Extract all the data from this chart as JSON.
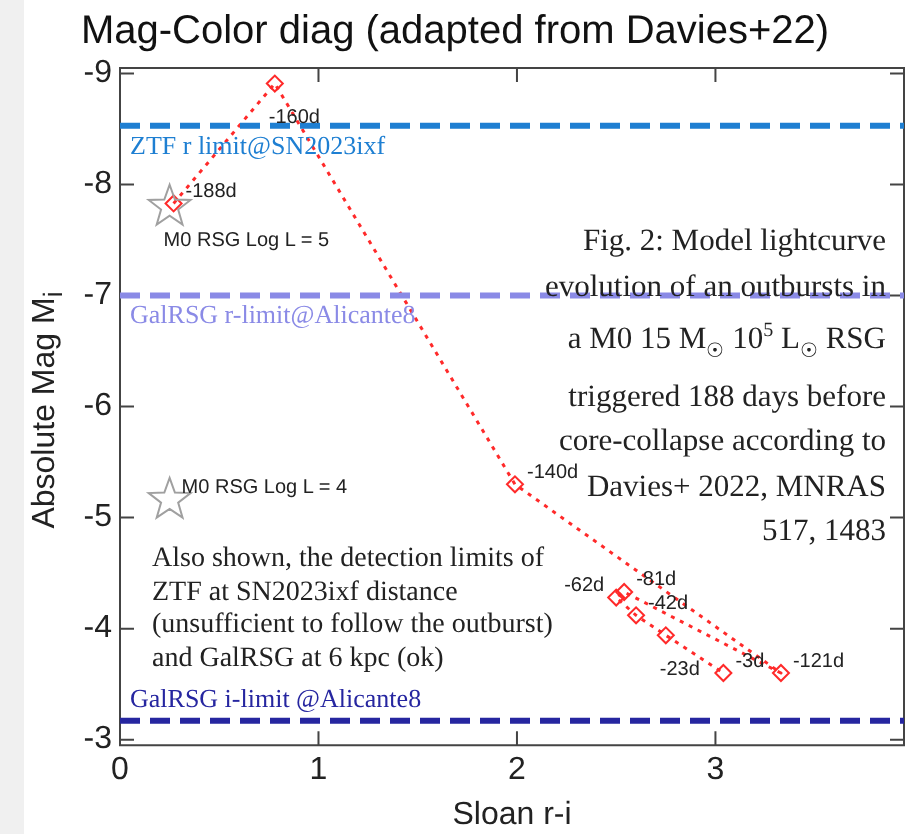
{
  "chart_data": {
    "type": "line",
    "title": "Mag-Color diag (adapted from Davies+22)",
    "xlabel": "Sloan r-i",
    "ylabel": "Absolute Mag M$_{i}$",
    "xlim": [
      0,
      3.95
    ],
    "xticks": [
      0,
      1,
      2,
      3
    ],
    "ylim": [
      -2.95,
      -9.05
    ],
    "yticks": [
      -9,
      -8,
      -7,
      -6,
      -5,
      -4,
      -3
    ],
    "grid": false,
    "legend": false,
    "series": [
      {
        "type": "line",
        "color": "#ff2a2a",
        "marker": "diamond",
        "line_style": "dotted",
        "x": [
          0.27,
          0.78,
          1.99,
          3.33,
          2.54,
          2.5,
          2.6,
          2.75,
          3.04
        ],
        "values": [
          -7.83,
          -8.91,
          -5.3,
          -3.6,
          -4.33,
          -4.28,
          -4.12,
          -3.94,
          -3.6
        ]
      },
      {
        "type": "scatter",
        "color": "#a0a0a0",
        "marker": "star",
        "x": [
          0.25,
          0.25
        ],
        "values": [
          -7.8,
          -5.16
        ]
      }
    ],
    "ref_lines": [
      {
        "axis": "y",
        "value": -8.53,
        "label": "ZTF r limit@SN2023ixf",
        "color": "#1e7fd2",
        "line_style": "dashed"
      },
      {
        "axis": "y",
        "value": -7.0,
        "label": "GalRSG r-limit@Alicante8",
        "color": "#8a8ae6",
        "line_style": "dashed"
      },
      {
        "axis": "y",
        "value": -3.17,
        "label": "GalRSG i-limit @Alicante8",
        "color": "#2626a0",
        "line_style": "dashed"
      }
    ],
    "annotations": [
      {
        "text": "-188d",
        "x": 0.27,
        "y": -7.83
      },
      {
        "text": "-160d",
        "x": 0.78,
        "y": -8.91
      },
      {
        "text": "-140d",
        "x": 1.99,
        "y": -5.3
      },
      {
        "text": "-121d",
        "x": 3.33,
        "y": -3.6
      },
      {
        "text": "-81d",
        "x": 2.54,
        "y": -4.33
      },
      {
        "text": "-62d",
        "x": 2.5,
        "y": -4.28
      },
      {
        "text": "-42d",
        "x": 2.6,
        "y": -4.12
      },
      {
        "text": "-23d",
        "x": 2.75,
        "y": -3.94
      },
      {
        "text": "-3d",
        "x": 3.04,
        "y": -3.6
      },
      {
        "text": "M0 RSG Log L = 5",
        "x": 0.25,
        "y": -7.8
      },
      {
        "text": "M0 RSG Log L = 4",
        "x": 0.25,
        "y": -5.16
      },
      "Fig. 2: Model lightcurve\nevolution of an outbursts in\na M0 15 M$_{☉}$ 10$^{5}$ L$_{☉}$ RSG\ntriggered 188 days before\ncore-collapse according to\nDavies+ 2022, MNRAS\n517, 1483",
      "Also shown, the detection limits of\nZTF at SN2023ixf distance\n(unsufficient to follow the outburst)\nand GalRSG at 6 kpc (ok)"
    ]
  }
}
